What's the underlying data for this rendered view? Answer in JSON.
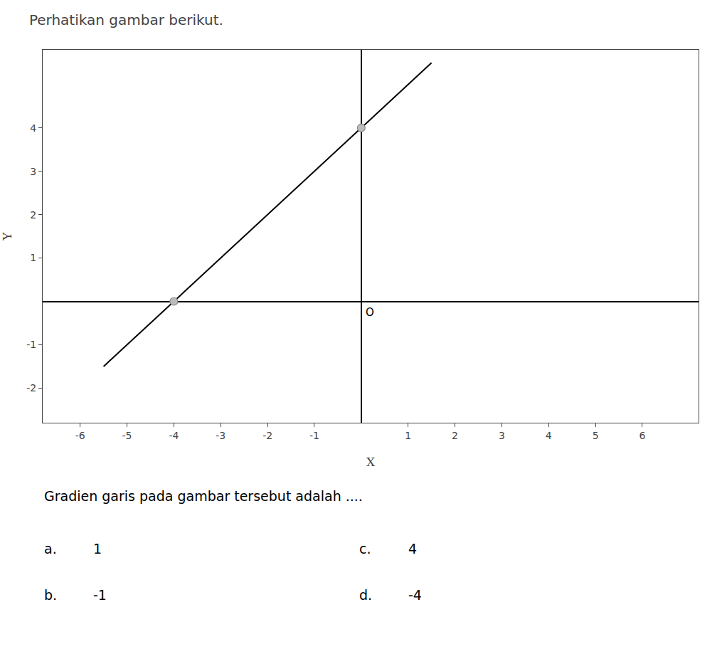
{
  "chart_data": {
    "type": "line",
    "title": "Perhatikan gambar berikut.",
    "xlabel": "X",
    "ylabel": "Y",
    "series": [
      {
        "type": "line",
        "x": [
          -5.5,
          1.5
        ],
        "values": [
          -1.5,
          5.5
        ],
        "color": "#000000"
      },
      {
        "type": "scatter",
        "x": [
          -4,
          0
        ],
        "values": [
          0,
          4
        ],
        "color": "#bbbbbb",
        "marker": "circle"
      }
    ],
    "xlim": [
      -6.8,
      7.2
    ],
    "ylim": [
      -2.8,
      5.8
    ],
    "xticks": [
      -6,
      -5,
      -4,
      -3,
      -2,
      -1,
      1,
      2,
      3,
      4,
      5,
      6
    ],
    "yticks": [
      -2,
      -1,
      1,
      2,
      3,
      4
    ],
    "grid": false,
    "annotations": [
      "O",
      "Gradien garis pada gambar tersebut adalah ....",
      "a.",
      "1",
      "b.",
      "-1",
      "c.",
      "4",
      "d.",
      "-4"
    ]
  }
}
